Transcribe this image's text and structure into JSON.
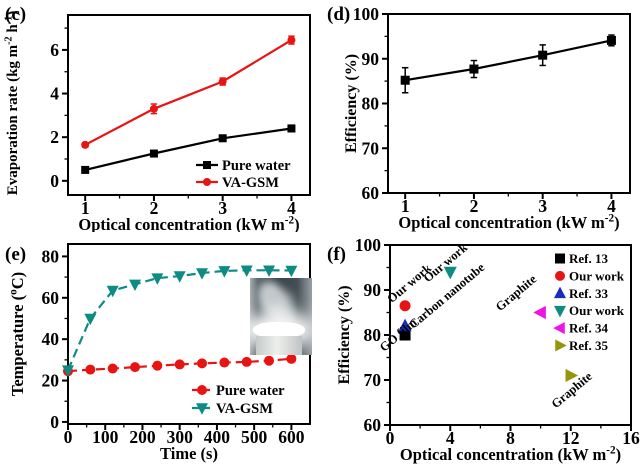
{
  "figure_title": "",
  "chart_data": [
    {
      "id": "c",
      "panel_label": "(c)",
      "type": "line",
      "xlabel": "Optical concentration (kW m^-2^)",
      "ylabel": "Evaporation rate (kg m^-2^ h^-1^)",
      "xlim": [
        0.75,
        4.27
      ],
      "ylim": [
        -0.65,
        7.6
      ],
      "xticks": [
        1,
        2,
        3,
        4
      ],
      "yticks": [
        0,
        2,
        4,
        6
      ],
      "xminor": [
        1.5,
        2.5,
        3.5
      ],
      "yminor": [
        1,
        3,
        5,
        7
      ],
      "grid": false,
      "legend_position": "inside-bottom-right",
      "series": [
        {
          "name": "Pure water",
          "color": "#000000",
          "marker": "square",
          "dash": false,
          "x": [
            1,
            2,
            3,
            4
          ],
          "y": [
            0.5,
            1.25,
            1.95,
            2.4
          ],
          "yerr": [
            0.05,
            0.05,
            0.07,
            0.15
          ]
        },
        {
          "name": "VA-GSM",
          "color": "#e81414",
          "marker": "circle",
          "dash": false,
          "x": [
            1,
            2,
            3,
            4
          ],
          "y": [
            1.65,
            3.3,
            4.55,
            6.45
          ],
          "yerr": [
            0.1,
            0.22,
            0.16,
            0.18
          ]
        }
      ]
    },
    {
      "id": "d",
      "panel_label": "(d)",
      "type": "line",
      "xlabel": "Optical concentration (kW m^-2^)",
      "ylabel": "Efficiency (%)",
      "xlim": [
        0.75,
        4.27
      ],
      "ylim": [
        60,
        100
      ],
      "xticks": [
        1,
        2,
        3,
        4
      ],
      "yticks": [
        60,
        70,
        80,
        90,
        100
      ],
      "xminor": [
        1.5,
        2.5,
        3.5
      ],
      "yminor": [
        65,
        75,
        85,
        95
      ],
      "grid": false,
      "series": [
        {
          "name": "Efficiency",
          "color": "#000000",
          "marker": "square",
          "dash": false,
          "x": [
            1,
            2,
            3,
            4
          ],
          "y": [
            85.2,
            87.7,
            90.8,
            94.1
          ],
          "yerr": [
            2.8,
            1.9,
            2.3,
            1.2
          ]
        }
      ]
    },
    {
      "id": "e",
      "panel_label": "(e)",
      "type": "line",
      "xlabel": "Time (s)",
      "ylabel": "Temperature (^o^C)",
      "xlim": [
        0,
        650
      ],
      "ylim": [
        -1,
        86
      ],
      "xticks": [
        0,
        100,
        200,
        300,
        400,
        500,
        600
      ],
      "yticks": [
        0,
        20,
        40,
        60,
        80
      ],
      "xminor": [
        50,
        150,
        250,
        350,
        450,
        550
      ],
      "yminor": [
        10,
        30,
        50,
        70
      ],
      "grid": false,
      "legend_position": "inside-bottom-right",
      "inset": "photo: steam plume rising from light-illuminated evaporator",
      "series": [
        {
          "name": "Pure water",
          "color": "#e81414",
          "marker": "circle",
          "dash": true,
          "x": [
            0,
            60,
            120,
            180,
            240,
            300,
            360,
            420,
            480,
            540,
            600
          ],
          "y": [
            24.5,
            25.3,
            25.8,
            26.5,
            27.2,
            27.8,
            28.3,
            28.7,
            29.0,
            29.6,
            30.5
          ]
        },
        {
          "name": "VA-GSM",
          "color": "#0e8b82",
          "marker": "triangle-down",
          "dash": true,
          "x": [
            0,
            60,
            120,
            180,
            240,
            300,
            360,
            420,
            480,
            540,
            600
          ],
          "y": [
            25,
            50,
            63.5,
            66.5,
            69.5,
            70.5,
            72,
            73,
            73.3,
            73.3,
            73.2
          ]
        }
      ]
    },
    {
      "id": "f",
      "panel_label": "(f)",
      "type": "scatter",
      "xlabel": "Optical concentration (kW m^-2^)",
      "ylabel": "Efficiency (%)",
      "xlim": [
        0,
        16
      ],
      "ylim": [
        60,
        100
      ],
      "xticks": [
        0,
        4,
        8,
        12,
        16
      ],
      "yticks": [
        60,
        70,
        80,
        90,
        100
      ],
      "xminor": [
        2,
        6,
        10,
        14
      ],
      "yminor": [
        65,
        75,
        85,
        95
      ],
      "grid": false,
      "legend_position": "inside-top-right",
      "points": [
        {
          "label": "Ref. 13",
          "color": "#000000",
          "marker": "square",
          "x": 1,
          "y": 80
        },
        {
          "label": "Our work",
          "color": "#e81414",
          "marker": "circle",
          "x": 1,
          "y": 86.5
        },
        {
          "label": "Ref. 33",
          "color": "#1a2bc4",
          "marker": "triangle-up",
          "x": 1,
          "y": 82
        },
        {
          "label": "Our work",
          "color": "#0e8b82",
          "marker": "triangle-down",
          "x": 4,
          "y": 94
        },
        {
          "label": "Ref. 34",
          "color": "#ee14e6",
          "marker": "triangle-left",
          "x": 10,
          "y": 85
        },
        {
          "label": "Ref. 35",
          "color": "#96960c",
          "marker": "triangle-right",
          "x": 12,
          "y": 71
        }
      ],
      "annotations": [
        {
          "text": "Our work",
          "x": 0.1,
          "y": 87.0,
          "angle": -40
        },
        {
          "text": "Carbon nanotube",
          "x": 1.55,
          "y": 81.3,
          "angle": -40
        },
        {
          "text": "GO film",
          "x": -0.4,
          "y": 76.2,
          "angle": -40
        },
        {
          "text": "Our work",
          "x": 2.5,
          "y": 91.6,
          "angle": -40
        },
        {
          "text": "Graphite",
          "x": 7.3,
          "y": 85.2,
          "angle": -40
        },
        {
          "text": "Graphite",
          "x": 11.0,
          "y": 63.6,
          "angle": -40
        }
      ]
    }
  ]
}
